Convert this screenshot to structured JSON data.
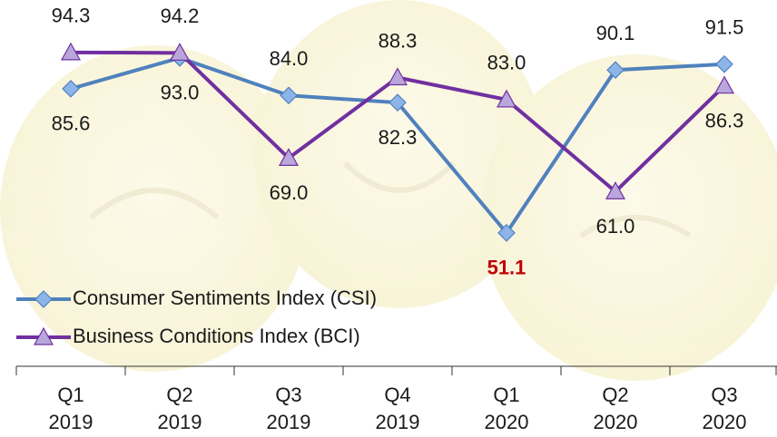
{
  "chart_data": {
    "type": "line",
    "categories": [
      [
        "Q1",
        "2019"
      ],
      [
        "Q2",
        "2019"
      ],
      [
        "Q3",
        "2019"
      ],
      [
        "Q4",
        "2019"
      ],
      [
        "Q1",
        "2020"
      ],
      [
        "Q2",
        "2020"
      ],
      [
        "Q3",
        "2020"
      ]
    ],
    "series": [
      {
        "name": "Consumer Sentiments Index (CSI)",
        "color": "#4f81bd",
        "marker": "diamond",
        "marker_color": "#8db4e8",
        "values": [
          85.6,
          93.0,
          84.0,
          82.3,
          51.1,
          90.1,
          91.5
        ],
        "value_labels": [
          "85.6",
          "93.0",
          "84.0",
          "82.3",
          "51.1",
          "90.1",
          "91.5"
        ]
      },
      {
        "name": "Business Conditions Index (BCI)",
        "color": "#7030a0",
        "marker": "triangle",
        "marker_color": "#b9a7dc",
        "values": [
          94.3,
          94.2,
          69.0,
          88.3,
          83.0,
          61.0,
          86.3
        ],
        "value_labels": [
          "94.3",
          "94.2",
          "69.0",
          "88.3",
          "83.0",
          "61.0",
          "86.3"
        ]
      }
    ],
    "highlight": {
      "series": 0,
      "index": 4,
      "color": "#c00000"
    },
    "ylim": [
      40,
      100
    ],
    "grid": false,
    "legend": "bottom-left"
  }
}
